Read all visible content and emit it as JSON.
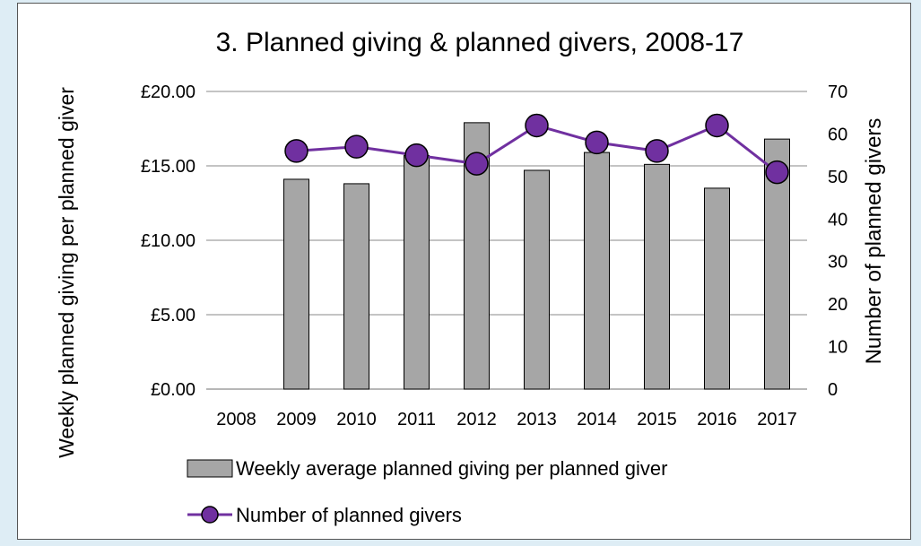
{
  "chart_data": {
    "type": "bar+line",
    "title": "3. Planned giving & planned givers, 2008-17",
    "categories": [
      "2008",
      "2009",
      "2010",
      "2011",
      "2012",
      "2013",
      "2014",
      "2015",
      "2016",
      "2017"
    ],
    "series": [
      {
        "name": "Weekly average planned giving per planned giver",
        "type": "bar",
        "axis": "left",
        "color": "#a6a6a6",
        "values": [
          null,
          14.1,
          13.8,
          15.7,
          17.9,
          14.7,
          15.9,
          15.1,
          13.5,
          16.8
        ]
      },
      {
        "name": "Number of planned givers",
        "type": "line",
        "axis": "right",
        "color": "#7030a0",
        "values": [
          null,
          56,
          57,
          55,
          53,
          62,
          58,
          56,
          62,
          51
        ]
      }
    ],
    "y_left": {
      "label": "Weekly planned giving per planned giver",
      "lim": [
        0,
        20
      ],
      "ticks": [
        "£0.00",
        "£5.00",
        "£10.00",
        "£15.00",
        "£20.00"
      ]
    },
    "y_right": {
      "label": "Number of planned givers",
      "lim": [
        0,
        70
      ],
      "ticks": [
        "0",
        "10",
        "20",
        "30",
        "40",
        "50",
        "60",
        "70"
      ]
    },
    "grid": true,
    "legend": "bottom"
  }
}
